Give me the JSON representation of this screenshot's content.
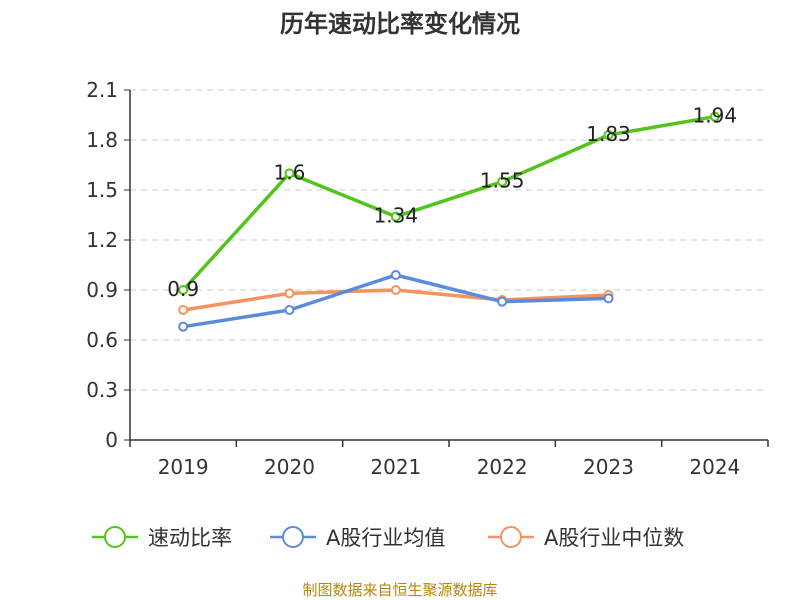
{
  "chart_data": {
    "type": "line",
    "title": "历年速动比率变化情况",
    "categories": [
      "2019",
      "2020",
      "2021",
      "2022",
      "2023",
      "2024"
    ],
    "ylim": [
      0,
      2.1
    ],
    "yticks": [
      "0",
      "0.3",
      "0.6",
      "0.9",
      "1.2",
      "1.5",
      "1.8",
      "2.1"
    ],
    "grid": true,
    "legend_position": "bottom",
    "series": [
      {
        "name": "速动比率",
        "color": "#52c41a",
        "values": [
          0.9,
          1.6,
          1.34,
          1.55,
          1.83,
          1.94
        ],
        "labels": [
          "0.9",
          "1.6",
          "1.34",
          "1.55",
          "1.83",
          "1.94"
        ]
      },
      {
        "name": "A股行业均值",
        "color": "#5b8bdc",
        "values": [
          0.68,
          0.78,
          0.99,
          0.83,
          0.85,
          null
        ]
      },
      {
        "name": "A股行业中位数",
        "color": "#f5925e",
        "values": [
          0.78,
          0.88,
          0.9,
          0.84,
          0.87,
          null
        ]
      }
    ]
  },
  "source_text": "制图数据来自恒生聚源数据库"
}
